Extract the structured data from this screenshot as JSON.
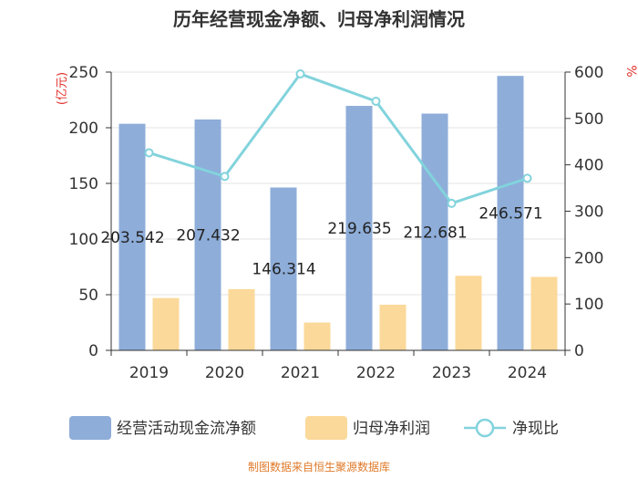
{
  "chart_data": {
    "type": "bar",
    "title": "历年经营现金净额、归母净利润情况",
    "categories": [
      "2019",
      "2020",
      "2021",
      "2022",
      "2023",
      "2024"
    ],
    "y_left": {
      "label": "(亿元)",
      "ylim": [
        0,
        250
      ],
      "ticks": [
        0,
        50,
        100,
        150,
        200,
        250
      ]
    },
    "y_right": {
      "label": "%",
      "ylim": [
        0,
        600
      ],
      "ticks": [
        0,
        100,
        200,
        300,
        400,
        500,
        600
      ]
    },
    "series": [
      {
        "name": "经营活动现金流净额",
        "type": "bar",
        "axis": "left",
        "values": [
          203.542,
          207.432,
          146.314,
          219.635,
          212.681,
          246.571
        ],
        "labels": [
          "203.542",
          "207.432",
          "146.314",
          "219.635",
          "212.681",
          "246.571"
        ]
      },
      {
        "name": "归母净利润",
        "type": "bar",
        "axis": "left",
        "values": [
          47,
          55,
          25,
          41,
          67,
          66
        ]
      },
      {
        "name": "净现比",
        "type": "line",
        "axis": "right",
        "values": [
          426,
          375,
          596,
          537,
          317,
          371
        ]
      }
    ],
    "colors": {
      "operating_cash": "#8eadd9",
      "net_profit": "#fbd99a",
      "ratio": "#82d3dc"
    },
    "legend_position": "bottom",
    "grid": true,
    "source": "制图数据来自恒生聚源数据库"
  }
}
